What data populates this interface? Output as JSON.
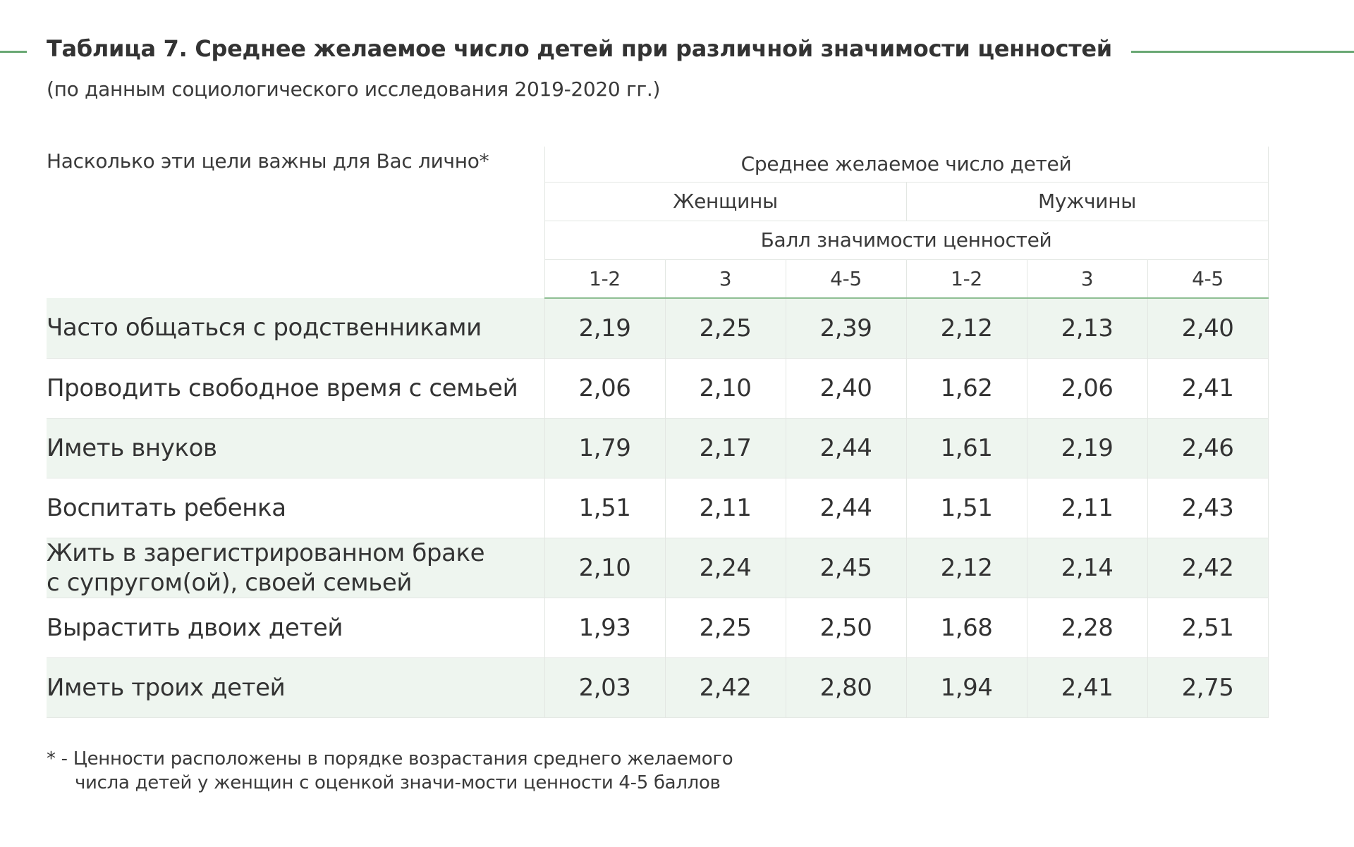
{
  "title": "Таблица 7. Среднее желаемое число детей при различной значимости ценностей",
  "subtitle": "(по данным социологического исследования 2019-2020 гг.)",
  "accent_color": "#6aa874",
  "row_shade_color": "#eef5ef",
  "table": {
    "label_header": "Насколько эти цели важны для Вас лично*",
    "group_header": "Среднее желаемое число детей",
    "sex_headers": [
      "Женщины",
      "Мужчины"
    ],
    "score_header": "Балл значимости ценностей",
    "score_columns": [
      "1-2",
      "3",
      "4-5",
      "1-2",
      "3",
      "4-5"
    ],
    "rows": [
      {
        "label": "Часто общаться с родственниками",
        "values": [
          "2,19",
          "2,25",
          "2,39",
          "2,12",
          "2,13",
          "2,40"
        ]
      },
      {
        "label": "Проводить свободное время с семьей",
        "values": [
          "2,06",
          "2,10",
          "2,40",
          "1,62",
          "2,06",
          "2,41"
        ]
      },
      {
        "label": "Иметь внуков",
        "values": [
          "1,79",
          "2,17",
          "2,44",
          "1,61",
          "2,19",
          "2,46"
        ]
      },
      {
        "label": "Воспитать ребенка",
        "values": [
          "1,51",
          "2,11",
          "2,44",
          "1,51",
          "2,11",
          "2,43"
        ]
      },
      {
        "label_line1": "Жить в зарегистрированном браке",
        "label_line2": "с супругом(ой), своей семьей",
        "values": [
          "2,10",
          "2,24",
          "2,45",
          "2,12",
          "2,14",
          "2,42"
        ]
      },
      {
        "label": "Вырастить двоих детей",
        "values": [
          "1,93",
          "2,25",
          "2,50",
          "1,68",
          "2,28",
          "2,51"
        ]
      },
      {
        "label": "Иметь троих детей",
        "values": [
          "2,03",
          "2,42",
          "2,80",
          "1,94",
          "2,41",
          "2,75"
        ]
      }
    ]
  },
  "footnote": {
    "line1": "* - Ценности расположены в порядке возрастания среднего желаемого",
    "line2": "числа детей у женщин с оценкой значи-мости ценности 4-5 баллов"
  }
}
